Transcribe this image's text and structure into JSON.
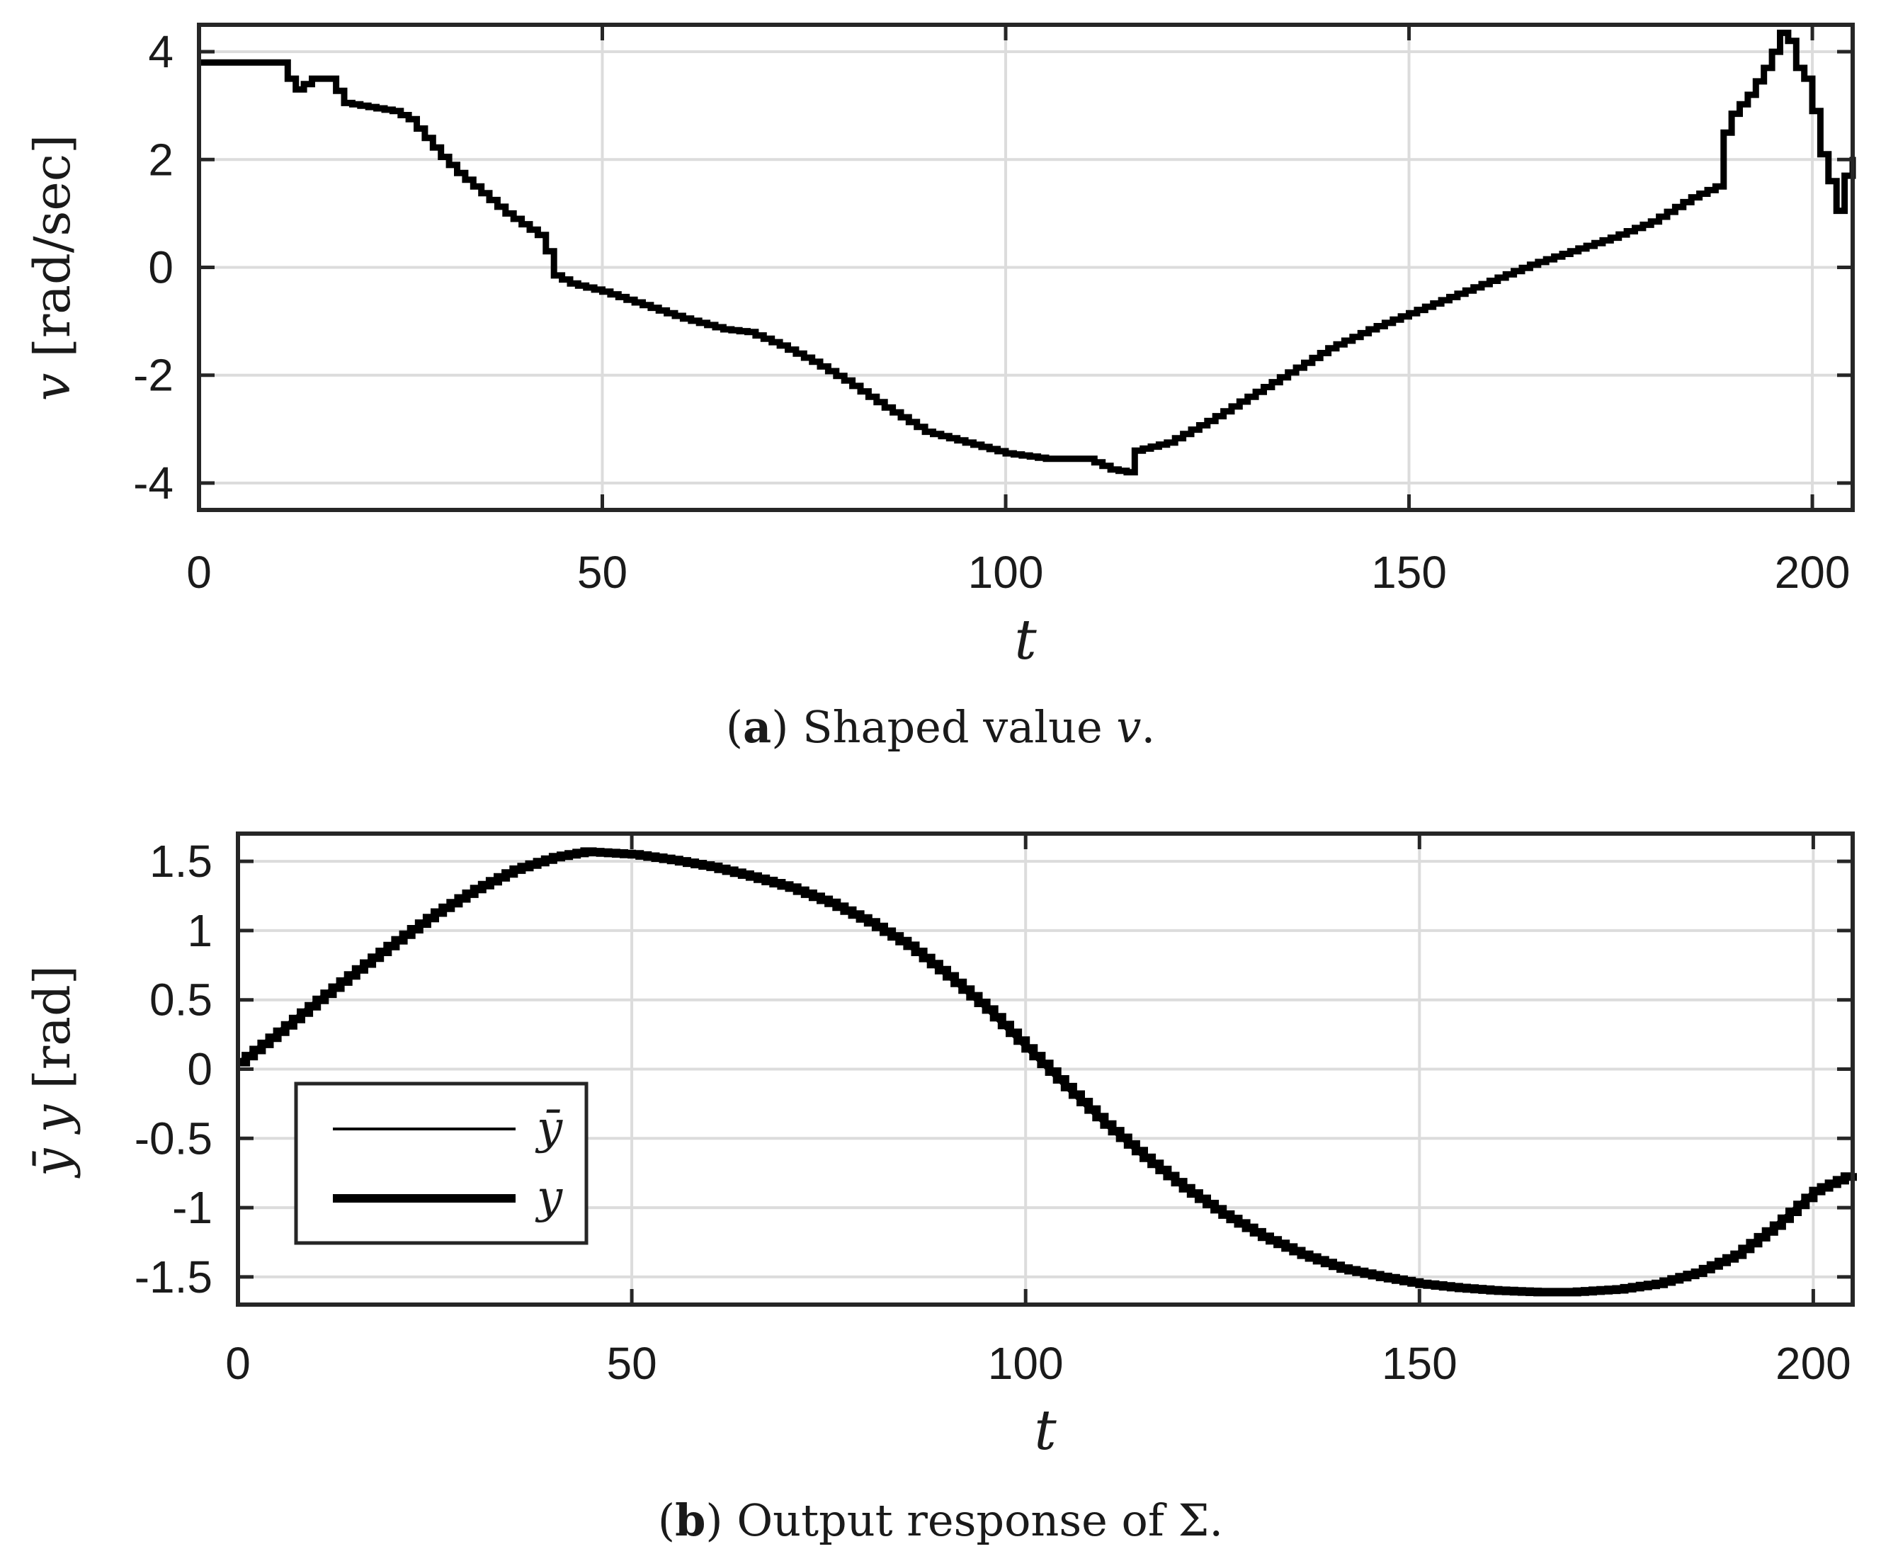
{
  "chart_data": [
    {
      "type": "line",
      "panel": "a",
      "title": "",
      "caption": {
        "label": "a",
        "text": "Shaped value",
        "symbol": "v",
        "end": "."
      },
      "xlabel": "t",
      "ylabel": {
        "symbol": "v",
        "unit": "[rad/sec]"
      },
      "xlim": [
        0,
        205
      ],
      "ylim": [
        -4.5,
        4.5
      ],
      "xticks": [
        0,
        50,
        100,
        150,
        200
      ],
      "xtick_labels": [
        "0",
        "50",
        "100",
        "150",
        "200"
      ],
      "yticks": [
        4,
        2,
        0,
        -2,
        -4
      ],
      "ytick_labels": [
        "4",
        "2",
        "0",
        "-2",
        "-4"
      ],
      "grid": true,
      "series": [
        {
          "name": "v",
          "style": "staircase",
          "x": [
            0,
            10,
            11,
            12,
            14,
            16,
            18,
            20,
            24,
            26,
            28,
            30,
            32,
            34,
            36,
            38,
            40,
            42,
            43,
            44,
            46,
            50,
            55,
            60,
            65,
            68,
            72,
            76,
            80,
            85,
            90,
            95,
            100,
            105,
            110,
            113,
            115,
            116,
            120,
            125,
            130,
            135,
            140,
            145,
            150,
            155,
            160,
            165,
            170,
            175,
            180,
            185,
            188,
            189,
            190,
            192,
            194,
            195,
            196,
            197,
            198,
            199,
            200,
            201,
            202,
            203,
            204,
            205
          ],
          "values": [
            3.8,
            3.8,
            3.5,
            3.3,
            3.5,
            3.5,
            3.05,
            3.0,
            2.9,
            2.75,
            2.4,
            2.05,
            1.75,
            1.5,
            1.25,
            1.0,
            0.8,
            0.6,
            0.3,
            -0.15,
            -0.3,
            -0.45,
            -0.7,
            -0.95,
            -1.15,
            -1.2,
            -1.45,
            -1.75,
            -2.1,
            -2.6,
            -3.05,
            -3.25,
            -3.45,
            -3.55,
            -3.55,
            -3.75,
            -3.8,
            -3.4,
            -3.25,
            -2.85,
            -2.4,
            -1.95,
            -1.5,
            -1.15,
            -0.85,
            -0.55,
            -0.25,
            0.05,
            0.3,
            0.55,
            0.85,
            1.3,
            1.5,
            2.5,
            2.85,
            3.2,
            3.7,
            4.0,
            4.35,
            4.2,
            3.7,
            3.5,
            2.9,
            2.1,
            1.6,
            1.05,
            1.7,
            2.05
          ]
        }
      ]
    },
    {
      "type": "line",
      "panel": "b",
      "title": "",
      "caption": {
        "label": "b",
        "text": "Output response of",
        "symbol": "Σ",
        "end": "."
      },
      "xlabel": "t",
      "ylabel": {
        "symbol1": "ȳ",
        "symbol2": "y",
        "unit": "[rad]"
      },
      "xlim": [
        0,
        205
      ],
      "ylim": [
        -1.7,
        1.7
      ],
      "xticks": [
        0,
        50,
        100,
        150,
        200
      ],
      "xtick_labels": [
        "0",
        "50",
        "100",
        "150",
        "200"
      ],
      "yticks": [
        1.5,
        1,
        0.5,
        0,
        -0.5,
        -1,
        -1.5
      ],
      "ytick_labels": [
        "1.5",
        "1",
        "0.5",
        "0",
        "-0.5",
        "-1",
        "-1.5"
      ],
      "grid": true,
      "legend": {
        "location": "lower-left",
        "entries": [
          "ȳ",
          "y"
        ]
      },
      "series": [
        {
          "name": "ȳ",
          "style": "thin",
          "x": [
            0,
            5,
            10,
            15,
            20,
            25,
            30,
            35,
            40,
            44,
            50,
            55,
            60,
            65,
            70,
            75,
            80,
            85,
            90,
            95,
            100,
            105,
            110,
            115,
            120,
            125,
            130,
            135,
            140,
            145,
            150,
            155,
            160,
            165,
            169,
            175,
            180,
            185,
            190,
            195,
            200,
            205
          ],
          "values": [
            0.05,
            0.27,
            0.5,
            0.72,
            0.93,
            1.13,
            1.3,
            1.44,
            1.53,
            1.57,
            1.55,
            1.51,
            1.46,
            1.39,
            1.31,
            1.2,
            1.06,
            0.89,
            0.67,
            0.43,
            0.15,
            -0.13,
            -0.4,
            -0.64,
            -0.86,
            -1.05,
            -1.21,
            -1.34,
            -1.44,
            -1.5,
            -1.55,
            -1.58,
            -1.6,
            -1.61,
            -1.61,
            -1.59,
            -1.55,
            -1.47,
            -1.34,
            -1.13,
            -0.88,
            -0.75
          ]
        },
        {
          "name": "y",
          "style": "thick-staircase",
          "x": [
            0,
            5,
            10,
            15,
            20,
            25,
            30,
            35,
            40,
            44,
            50,
            55,
            60,
            65,
            70,
            75,
            80,
            85,
            90,
            95,
            100,
            105,
            110,
            115,
            120,
            125,
            130,
            135,
            140,
            145,
            150,
            155,
            160,
            165,
            169,
            175,
            180,
            185,
            190,
            195,
            200,
            205
          ],
          "values": [
            0.05,
            0.27,
            0.5,
            0.72,
            0.93,
            1.13,
            1.3,
            1.44,
            1.53,
            1.57,
            1.55,
            1.51,
            1.46,
            1.39,
            1.31,
            1.2,
            1.06,
            0.89,
            0.67,
            0.43,
            0.15,
            -0.13,
            -0.4,
            -0.64,
            -0.86,
            -1.05,
            -1.21,
            -1.34,
            -1.44,
            -1.5,
            -1.55,
            -1.58,
            -1.6,
            -1.61,
            -1.61,
            -1.59,
            -1.55,
            -1.47,
            -1.34,
            -1.13,
            -0.88,
            -0.75
          ]
        }
      ]
    }
  ]
}
